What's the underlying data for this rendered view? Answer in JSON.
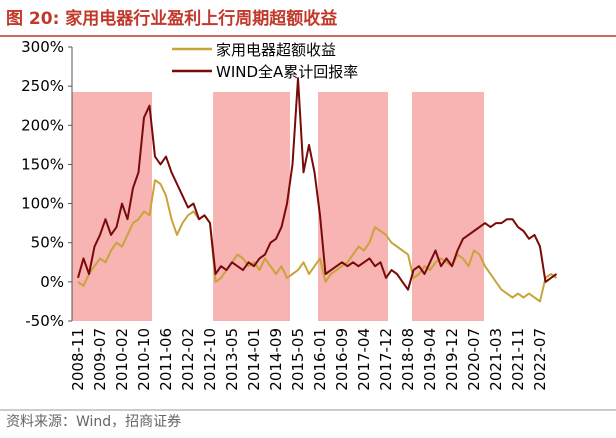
{
  "chart_data": {
    "type": "line",
    "title": "图 20:  家用电器行业盈利上行周期超额收益",
    "source": "资料来源：Wind，招商证券",
    "categories": [
      "2008-11",
      null,
      null,
      null,
      "2009-07",
      null,
      null,
      null,
      "2010-02",
      null,
      null,
      null,
      "2010-10",
      null,
      null,
      null,
      "2011-06",
      null,
      null,
      null,
      "2012-02",
      null,
      null,
      null,
      "2012-10",
      null,
      null,
      null,
      "2013-05",
      null,
      null,
      null,
      "2014-01",
      null,
      null,
      null,
      "2014-09",
      null,
      null,
      null,
      "2015-05",
      null,
      null,
      null,
      "2016-01",
      null,
      null,
      null,
      "2016-09",
      null,
      null,
      null,
      "2017-04",
      null,
      null,
      null,
      "2017-12",
      null,
      null,
      null,
      "2018-08",
      null,
      null,
      null,
      "2019-04",
      null,
      null,
      null,
      "2019-12",
      null,
      null,
      null,
      "2020-07",
      null,
      null,
      null,
      "2021-03",
      null,
      null,
      null,
      "2021-11",
      null,
      null,
      null,
      "2022-07",
      null,
      null,
      null
    ],
    "series": [
      {
        "name": "家用电器超额收益",
        "color": "#c9a43a",
        "values": [
          0,
          -5,
          10,
          20,
          30,
          25,
          40,
          50,
          45,
          60,
          75,
          80,
          90,
          85,
          130,
          125,
          110,
          80,
          60,
          75,
          85,
          90,
          80,
          85,
          75,
          0,
          5,
          15,
          25,
          35,
          30,
          20,
          25,
          15,
          30,
          20,
          10,
          20,
          5,
          10,
          15,
          25,
          10,
          20,
          30,
          0,
          10,
          15,
          20,
          25,
          35,
          45,
          40,
          50,
          70,
          65,
          60,
          50,
          45,
          40,
          35,
          5,
          10,
          20,
          15,
          25,
          30,
          25,
          20,
          35,
          30,
          20,
          40,
          35,
          20,
          10,
          0,
          -10,
          -15,
          -20,
          -15,
          -20,
          -15,
          -20,
          -25,
          5,
          10,
          5
        ]
      },
      {
        "name": "WIND全A累计回报率",
        "color": "#7a0a0a",
        "values": [
          5,
          30,
          10,
          45,
          60,
          80,
          60,
          70,
          100,
          80,
          120,
          140,
          210,
          225,
          160,
          150,
          160,
          140,
          125,
          110,
          95,
          100,
          80,
          85,
          75,
          10,
          20,
          15,
          25,
          20,
          15,
          25,
          20,
          30,
          35,
          50,
          55,
          70,
          100,
          150,
          260,
          140,
          175,
          140,
          85,
          10,
          15,
          20,
          25,
          20,
          25,
          20,
          25,
          30,
          20,
          25,
          5,
          15,
          10,
          0,
          -10,
          15,
          20,
          10,
          25,
          40,
          20,
          30,
          20,
          40,
          55,
          60,
          65,
          70,
          75,
          70,
          75,
          75,
          80,
          80,
          70,
          65,
          55,
          60,
          45,
          0,
          5,
          10
        ]
      }
    ],
    "ylim": [
      -50,
      300
    ],
    "yticks": [
      {
        "value": -50,
        "label": "-50%"
      },
      {
        "value": 0,
        "label": "0%"
      },
      {
        "value": 50,
        "label": "50%"
      },
      {
        "value": 100,
        "label": "100%"
      },
      {
        "value": 150,
        "label": "150%"
      },
      {
        "value": 200,
        "label": "200%"
      },
      {
        "value": 250,
        "label": "250%"
      },
      {
        "value": 300,
        "label": "300%"
      }
    ],
    "legend": "top",
    "grid": false
  }
}
